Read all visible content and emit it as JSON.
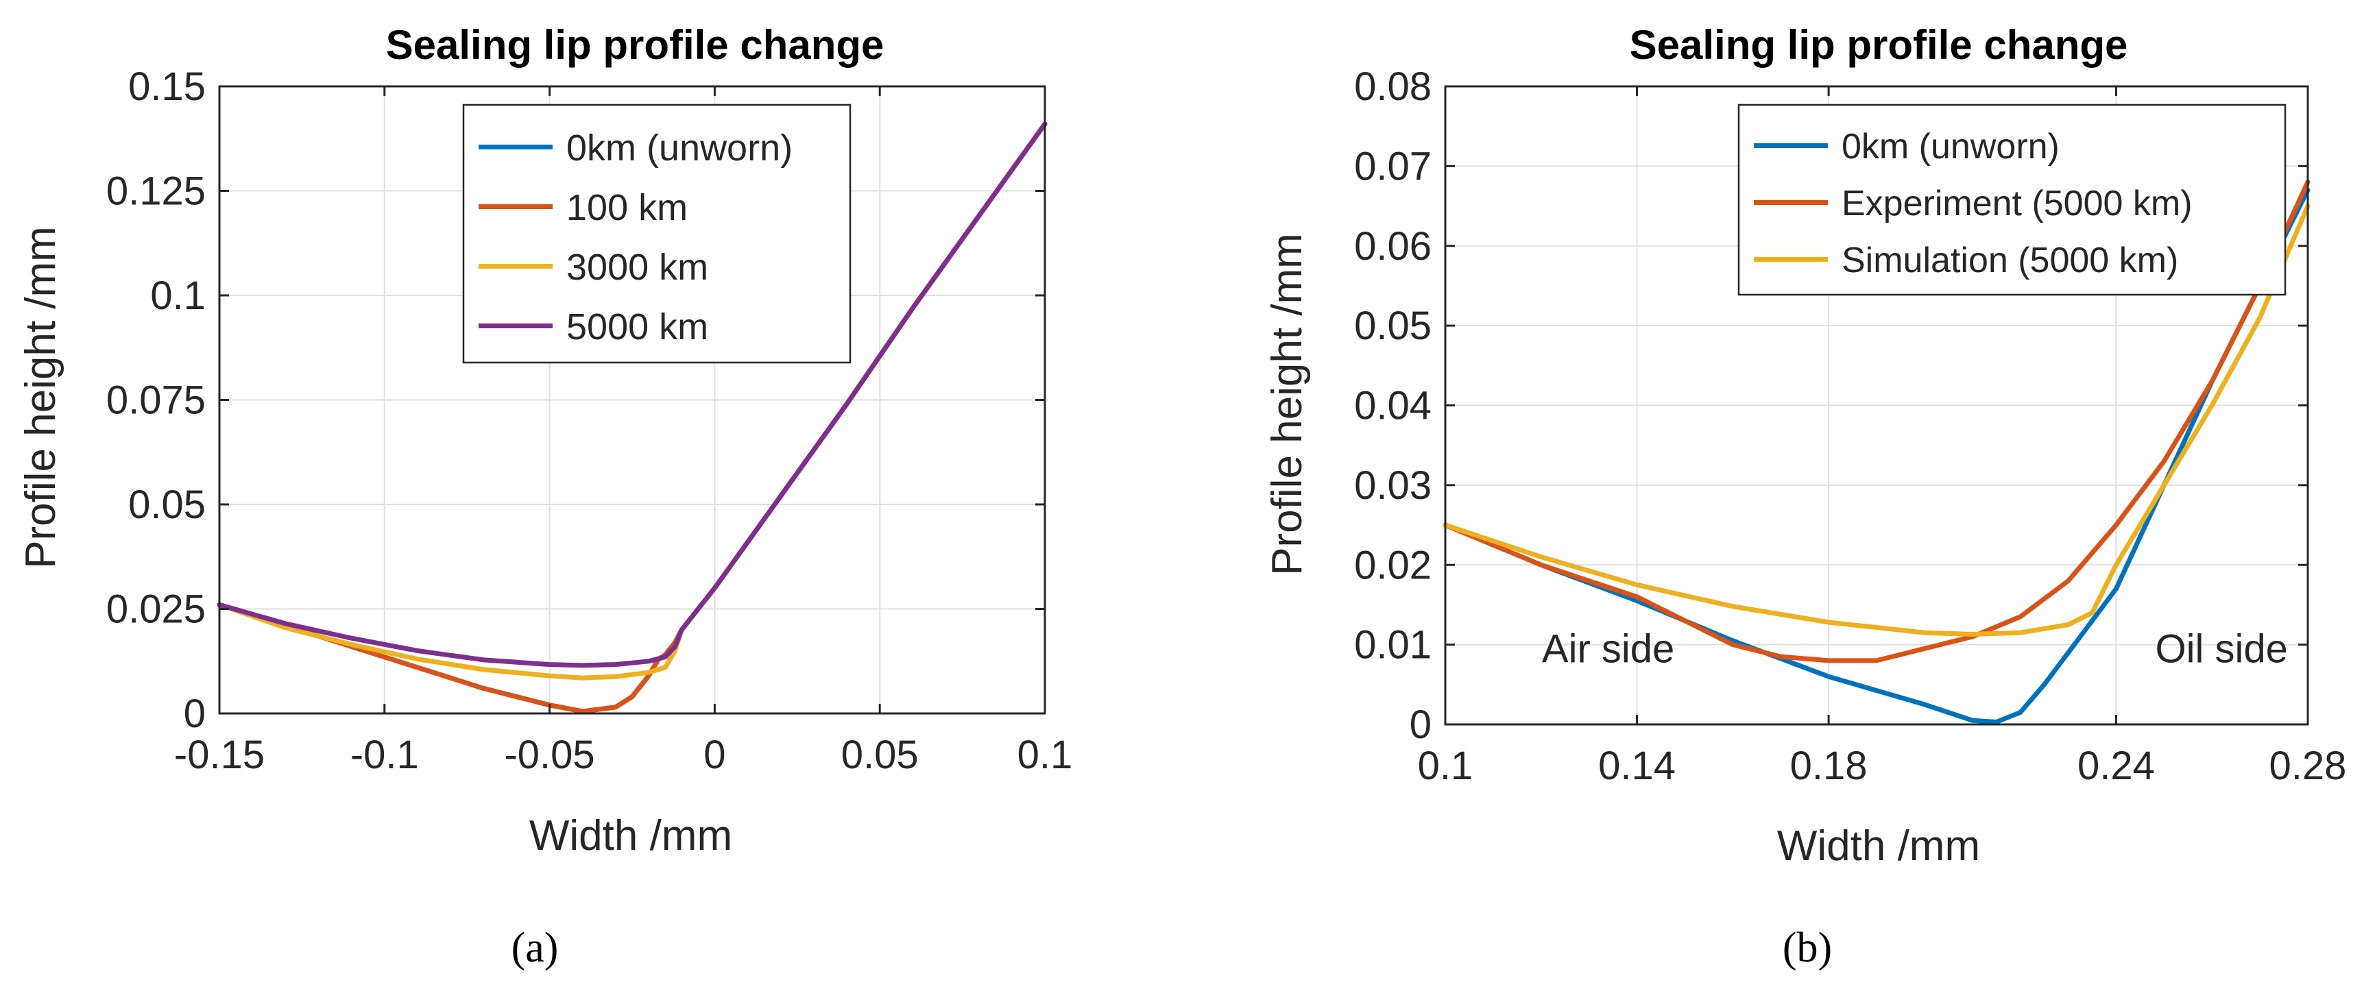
{
  "chart_data": [
    {
      "type": "line",
      "title": "Sealing lip profile change",
      "xlabel": "Width /mm",
      "ylabel": "Profile height /mm",
      "xlim": [
        -0.15,
        0.1
      ],
      "ylim": [
        0,
        0.15
      ],
      "xticks": [
        -0.15,
        -0.1,
        -0.05,
        0,
        0.05,
        0.1
      ],
      "xtick_labels": [
        "-0.15",
        "-0.1",
        "-0.05",
        "0",
        "0.05",
        "0.1"
      ],
      "yticks": [
        0,
        0.025,
        0.05,
        0.075,
        0.1,
        0.125,
        0.15
      ],
      "ytick_labels": [
        "0",
        "0.025",
        "0.05",
        "0.075",
        "0.1",
        "0.125",
        "0.15"
      ],
      "grid": true,
      "legend_position": "top-right",
      "caption": "(a)",
      "series": [
        {
          "name": "0km (unworn)",
          "color": "#0072BD",
          "x": [
            -0.15,
            -0.13,
            -0.11,
            -0.09,
            -0.07,
            -0.05,
            -0.04,
            -0.03,
            -0.025,
            -0.02,
            -0.017,
            -0.015,
            -0.012,
            -0.01,
            0,
            0.02,
            0.04,
            0.06,
            0.08,
            0.1
          ],
          "y": [
            0.026,
            0.021,
            0.016,
            0.011,
            0.006,
            0.002,
            0.0005,
            0.0015,
            0.004,
            0.009,
            0.013,
            0.014,
            0.017,
            0.02,
            0.03,
            0.052,
            0.074,
            0.097,
            0.119,
            0.141
          ]
        },
        {
          "name": "100 km",
          "color": "#D95319",
          "x": [
            -0.15,
            -0.13,
            -0.11,
            -0.09,
            -0.07,
            -0.05,
            -0.04,
            -0.03,
            -0.025,
            -0.02,
            -0.017,
            -0.015,
            -0.012,
            -0.01,
            0,
            0.02,
            0.04,
            0.06,
            0.08,
            0.1
          ],
          "y": [
            0.026,
            0.021,
            0.016,
            0.011,
            0.006,
            0.002,
            0.0005,
            0.0015,
            0.004,
            0.009,
            0.013,
            0.014,
            0.017,
            0.02,
            0.03,
            0.052,
            0.074,
            0.097,
            0.119,
            0.141
          ]
        },
        {
          "name": "3000 km",
          "color": "#EDB120",
          "x": [
            -0.15,
            -0.13,
            -0.11,
            -0.09,
            -0.07,
            -0.05,
            -0.04,
            -0.03,
            -0.02,
            -0.015,
            -0.012,
            -0.01,
            0,
            0.02,
            0.04,
            0.06,
            0.08,
            0.1
          ],
          "y": [
            0.026,
            0.0205,
            0.0165,
            0.013,
            0.0105,
            0.009,
            0.0085,
            0.0088,
            0.0098,
            0.011,
            0.015,
            0.02,
            0.03,
            0.052,
            0.074,
            0.097,
            0.119,
            0.141
          ]
        },
        {
          "name": "5000 km",
          "color": "#7E2F8E",
          "x": [
            -0.15,
            -0.13,
            -0.11,
            -0.09,
            -0.07,
            -0.05,
            -0.04,
            -0.03,
            -0.02,
            -0.015,
            -0.012,
            -0.01,
            0,
            0.02,
            0.04,
            0.06,
            0.08,
            0.1
          ],
          "y": [
            0.026,
            0.0215,
            0.018,
            0.015,
            0.0128,
            0.0117,
            0.0115,
            0.0117,
            0.0125,
            0.0135,
            0.016,
            0.02,
            0.03,
            0.052,
            0.074,
            0.097,
            0.119,
            0.141
          ]
        }
      ]
    },
    {
      "type": "line",
      "title": "Sealing lip profile change",
      "xlabel": "Width /mm",
      "ylabel": "Profile height /mm",
      "xlim": [
        0.1,
        0.28
      ],
      "ylim": [
        0,
        0.08
      ],
      "xticks": [
        0.1,
        0.14,
        0.18,
        0.24,
        0.28
      ],
      "xtick_labels": [
        "0.1",
        "0.14",
        "0.18",
        "0.24",
        "0.28"
      ],
      "yticks": [
        0,
        0.01,
        0.02,
        0.03,
        0.04,
        0.05,
        0.06,
        0.07,
        0.08
      ],
      "ytick_labels": [
        "0",
        "0.01",
        "0.02",
        "0.03",
        "0.04",
        "0.05",
        "0.06",
        "0.07",
        "0.08"
      ],
      "grid": true,
      "legend_position": "top-right",
      "caption": "(b)",
      "annotations": [
        {
          "text": "Air side",
          "x": 0.134,
          "y": 0.0095
        },
        {
          "text": "Oil side",
          "x": 0.262,
          "y": 0.0095
        }
      ],
      "series": [
        {
          "name": "0km (unworn)",
          "color": "#0072BD",
          "x": [
            0.1,
            0.12,
            0.14,
            0.16,
            0.18,
            0.2,
            0.21,
            0.215,
            0.22,
            0.225,
            0.23,
            0.235,
            0.24,
            0.25,
            0.26,
            0.27,
            0.28
          ],
          "y": [
            0.025,
            0.02,
            0.0155,
            0.0105,
            0.006,
            0.0025,
            0.0005,
            0.0003,
            0.0015,
            0.005,
            0.009,
            0.013,
            0.017,
            0.03,
            0.043,
            0.055,
            0.067
          ]
        },
        {
          "name": "Experiment (5000 km)",
          "color": "#D95319",
          "x": [
            0.1,
            0.12,
            0.14,
            0.16,
            0.17,
            0.18,
            0.19,
            0.2,
            0.21,
            0.22,
            0.23,
            0.24,
            0.25,
            0.26,
            0.27,
            0.28
          ],
          "y": [
            0.025,
            0.02,
            0.016,
            0.01,
            0.0085,
            0.008,
            0.008,
            0.0095,
            0.011,
            0.0135,
            0.018,
            0.025,
            0.033,
            0.043,
            0.055,
            0.068
          ]
        },
        {
          "name": "Simulation (5000 km)",
          "color": "#EDB120",
          "x": [
            0.1,
            0.12,
            0.14,
            0.16,
            0.18,
            0.2,
            0.21,
            0.22,
            0.23,
            0.235,
            0.24,
            0.25,
            0.26,
            0.27,
            0.28
          ],
          "y": [
            0.025,
            0.021,
            0.0175,
            0.0148,
            0.0128,
            0.0115,
            0.0113,
            0.0115,
            0.0125,
            0.014,
            0.02,
            0.03,
            0.04,
            0.051,
            0.065
          ]
        }
      ]
    }
  ]
}
